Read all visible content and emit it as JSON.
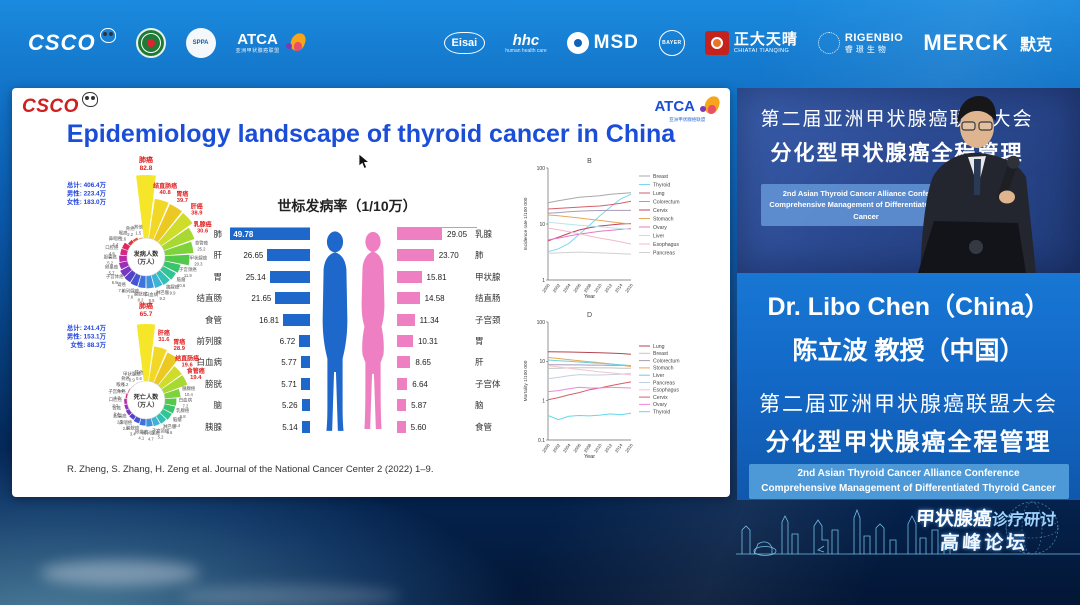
{
  "top_bar": {
    "left_logos": [
      {
        "id": "csco",
        "label": "CSCO"
      },
      {
        "id": "anti-cancer-assoc",
        "label": ""
      },
      {
        "id": "sppa",
        "label": "SPPA"
      },
      {
        "id": "atca",
        "label": "ATCA",
        "sub": "亚洲甲状腺癌联盟"
      }
    ],
    "right_logos": [
      {
        "id": "eisai",
        "label": "Eisai"
      },
      {
        "id": "hhc",
        "label": "hhc",
        "sub": "human health care"
      },
      {
        "id": "msd",
        "label": "MSD"
      },
      {
        "id": "bayer",
        "label": "BAYER"
      },
      {
        "id": "chiatai",
        "label": "正大天晴",
        "sub": "CHIATAI TIANQING"
      },
      {
        "id": "rigenbio",
        "label": "RIGENBIO",
        "sub": "睿璟生物"
      },
      {
        "id": "merck",
        "label": "MERCK",
        "sub": "默克"
      }
    ]
  },
  "slide": {
    "csco_logo": "CSCO",
    "atca_logo": "ATCA",
    "atca_sub": "亚洲甲状腺癌联盟",
    "title": "Epidemiology landscape of thyroid cancer in China",
    "citation": "R. Zheng, S. Zhang, H. Zeng et al. Journal of the National Cancer Center 2 (2022) 1–9."
  },
  "chart_data": [
    {
      "id": "incidence_rose",
      "type": "pie",
      "style": "nightingale-rose",
      "center_line1": "发病人数",
      "center_line2": "（万人）",
      "totals": [
        "总计: 406.4万",
        "男性: 223.4万",
        "女性: 183.0万"
      ],
      "colors": [
        "#f6e62a",
        "#f2d826",
        "#ecc822",
        "#cfdc2c",
        "#a8d832",
        "#7ed23a",
        "#54c84b",
        "#3ac46e",
        "#32c493",
        "#33bfb5",
        "#3fb3d6",
        "#3f93dd",
        "#3f72dd",
        "#4355d2",
        "#5540c8",
        "#7a36c2",
        "#9c2fba",
        "#bc2ba6",
        "#d02a86",
        "#dd2a62",
        "#e23345",
        "#e9542e",
        "#f08224"
      ],
      "wedges": [
        {
          "label": "肺癌",
          "value": "82.8",
          "red": true
        },
        {
          "label": "结直肠癌",
          "value": "40.8",
          "red": true
        },
        {
          "label": "胃癌",
          "value": "39.7",
          "red": true
        },
        {
          "label": "肝癌",
          "value": "38.9",
          "red": true
        },
        {
          "label": "乳腺癌",
          "value": "30.6",
          "red": true
        },
        {
          "label": "食管癌",
          "value": "25.2"
        },
        {
          "label": "甲状腺癌",
          "value": "20.3"
        },
        {
          "label": "子宫颈癌",
          "value": "11.9"
        },
        {
          "label": "脑瘤",
          "value": "10.6"
        },
        {
          "label": "胰腺癌",
          "value": "9.9"
        },
        {
          "label": "淋巴瘤",
          "value": "9.2"
        },
        {
          "label": "白血病",
          "value": "8.5"
        },
        {
          "label": "膀胱癌",
          "value": "8.2"
        },
        {
          "label": "前列腺癌",
          "value": "7.8"
        },
        {
          "label": "肾癌",
          "value": "7.3"
        },
        {
          "label": "子宫体癌",
          "value": "6.9"
        },
        {
          "label": "卵巢癌",
          "value": "5.7"
        },
        {
          "label": "胆囊癌",
          "value": "5.2"
        },
        {
          "label": "口腔癌",
          "value": "4.6"
        },
        {
          "label": "鼻咽癌",
          "value": "4.4"
        },
        {
          "label": "喉癌",
          "value": "2.6"
        },
        {
          "label": "骨癌",
          "value": "2.2"
        },
        {
          "label": "其他",
          "value": "1.5"
        }
      ]
    },
    {
      "id": "mortality_rose",
      "type": "pie",
      "style": "nightingale-rose",
      "center_line1": "死亡人数",
      "center_line2": "（万人）",
      "totals": [
        "总计: 241.4万",
        "男性: 153.1万",
        "女性: 88.3万"
      ],
      "colors": [
        "#f6e62a",
        "#f2d826",
        "#ecc822",
        "#cfdc2c",
        "#a8d832",
        "#7ed23a",
        "#54c84b",
        "#3ac46e",
        "#32c493",
        "#33bfb5",
        "#3fb3d6",
        "#3f93dd",
        "#3f72dd",
        "#4355d2",
        "#5540c8",
        "#7a36c2",
        "#9c2fba",
        "#bc2ba6",
        "#d02a86",
        "#dd2a62",
        "#e23345",
        "#e9542e",
        "#f08224"
      ],
      "wedges": [
        {
          "label": "肺癌",
          "value": "65.7",
          "red": true
        },
        {
          "label": "肝癌",
          "value": "31.6",
          "red": true
        },
        {
          "label": "胃癌",
          "value": "28.9",
          "red": true
        },
        {
          "label": "结直肠癌",
          "value": "19.6",
          "red": true
        },
        {
          "label": "食管癌",
          "value": "19.4",
          "red": true
        },
        {
          "label": "胰腺癌",
          "value": "10.4"
        },
        {
          "label": "白血病",
          "value": "7.2"
        },
        {
          "label": "乳腺癌",
          "value": "6.8"
        },
        {
          "label": "脑瘤",
          "value": "6.4"
        },
        {
          "label": "淋巴瘤",
          "value": "5.6"
        },
        {
          "label": "子宫颈癌",
          "value": "5.2"
        },
        {
          "label": "前列腺癌",
          "value": "4.7"
        },
        {
          "label": "卵巢癌",
          "value": "4.1"
        },
        {
          "label": "膀胱癌",
          "value": "3.4"
        },
        {
          "label": "鼻咽癌",
          "value": "2.9"
        },
        {
          "label": "胆囊癌",
          "value": "2.7"
        },
        {
          "label": "肾癌",
          "value": "2.4"
        },
        {
          "label": "口腔癌",
          "value": "2.2"
        },
        {
          "label": "子宫体癌",
          "value": "1.7"
        },
        {
          "label": "喉癌",
          "value": "1.4"
        },
        {
          "label": "骨癌",
          "value": "1.2"
        },
        {
          "label": "甲状腺癌",
          "value": "0.9"
        },
        {
          "label": "其他",
          "value": "0.6"
        }
      ]
    },
    {
      "id": "asir_bars",
      "type": "bar",
      "title": "世标发病率（1/10万）",
      "male": {
        "color": "#1e68cc",
        "labels": [
          "肺",
          "肝",
          "胃",
          "结直肠",
          "食管",
          "前列腺",
          "白血病",
          "膀胱",
          "脑",
          "胰腺"
        ],
        "values": [
          "49.78",
          "26.65",
          "25.14",
          "21.65",
          "16.81",
          "6.72",
          "5.77",
          "5.71",
          "5.26",
          "5.14"
        ]
      },
      "female": {
        "color": "#ee7fc2",
        "labels": [
          "乳腺",
          "肺",
          "甲状腺",
          "结直肠",
          "子宫颈",
          "胃",
          "肝",
          "子宫体",
          "脑",
          "食管"
        ],
        "values": [
          "29.05",
          "23.70",
          "15.81",
          "14.58",
          "11.34",
          "10.31",
          "8.65",
          "6.64",
          "5.87",
          "5.60"
        ]
      }
    },
    {
      "id": "incidence_trend",
      "type": "line",
      "panel_label": "B",
      "ylabel": "Incidence rate 1/100 000",
      "xlabel": "Year",
      "yscale": "log",
      "ylim": [
        1,
        100
      ],
      "x": [
        "2000",
        "2002",
        "2004",
        "2006",
        "2008",
        "2010",
        "2012",
        "2014",
        "2016"
      ],
      "legend_position": "right",
      "series": [
        {
          "name": "Breast",
          "color": "#a8a8a8",
          "values": [
            24,
            26,
            28,
            30,
            31,
            32,
            34,
            35,
            36
          ]
        },
        {
          "name": "Thyroid",
          "color": "#7fd4f0",
          "values": [
            3.2,
            3.6,
            4.5,
            6.5,
            9.5,
            14,
            20,
            28,
            34
          ]
        },
        {
          "name": "Lung",
          "color": "#d65f6a",
          "values": [
            18.5,
            19,
            19.5,
            20,
            20.5,
            21,
            22,
            23.5,
            25.5
          ]
        },
        {
          "name": "Colorectum",
          "color": "#a89ab8",
          "values": [
            15.5,
            16,
            16.5,
            17,
            17.2,
            17.4,
            17.5,
            17.5,
            17.5
          ]
        },
        {
          "name": "Cervix",
          "color": "#c2415e",
          "values": [
            5,
            5.8,
            6.8,
            7.8,
            8.6,
            9.2,
            9.6,
            10,
            10.2
          ]
        },
        {
          "name": "Stomach",
          "color": "#e8a755",
          "values": [
            14.5,
            14,
            13.4,
            12.8,
            12.2,
            11.6,
            11,
            10.4,
            10
          ]
        },
        {
          "name": "Ovary",
          "color": "#e977c9",
          "values": [
            5.2,
            5.6,
            6.1,
            6.6,
            7,
            7.4,
            7.7,
            8,
            8.3
          ]
        },
        {
          "name": "Liver",
          "color": "#b8e4ee",
          "values": [
            10.8,
            10.3,
            9.9,
            9.5,
            9.2,
            8.9,
            8.6,
            8.3,
            8
          ]
        },
        {
          "name": "Esophagus",
          "color": "#f4b9c9",
          "values": [
            8.5,
            7.9,
            7.3,
            6.7,
            6.1,
            5.6,
            5.2,
            4.8,
            4.4
          ]
        },
        {
          "name": "Pancreas",
          "color": "#d0d0d0",
          "values": [
            3,
            3.05,
            3.1,
            3.15,
            3.1,
            3.05,
            3,
            2.95,
            2.9
          ]
        }
      ]
    },
    {
      "id": "mortality_trend",
      "type": "line",
      "panel_label": "D",
      "ylabel": "Mortality 1/100 000",
      "xlabel": "Year",
      "yscale": "log",
      "ylim": [
        0.1,
        100
      ],
      "x": [
        "2000",
        "2002",
        "2004",
        "2006",
        "2008",
        "2010",
        "2012",
        "2014",
        "2016"
      ],
      "legend_position": "right",
      "series": [
        {
          "name": "Lung",
          "color": "#b5454f",
          "values": [
            17.5,
            17.4,
            17.3,
            17.1,
            16.8,
            16.5,
            16.2,
            15.8,
            15.2
          ]
        },
        {
          "name": "Breast",
          "color": "#c4c4c4",
          "values": [
            6.6,
            6.7,
            6.8,
            6.9,
            6.9,
            6.8,
            6.8,
            6.7,
            6.7
          ]
        },
        {
          "name": "Colorectum",
          "color": "#a89ab8",
          "values": [
            8.2,
            8.2,
            8.1,
            8.1,
            8,
            8,
            7.9,
            7.9,
            7.8
          ]
        },
        {
          "name": "Stomach",
          "color": "#e8a755",
          "values": [
            12.5,
            11.8,
            11.1,
            10.4,
            9.8,
            9.2,
            8.6,
            8,
            7.4
          ]
        },
        {
          "name": "Liver",
          "color": "#6ccfdc",
          "values": [
            10.8,
            10.4,
            10,
            9.6,
            9.2,
            8.9,
            8.5,
            8.2,
            7.8
          ]
        },
        {
          "name": "Pancreas",
          "color": "#c3cfe0",
          "values": [
            3.6,
            3.9,
            4.3,
            4.6,
            4.5,
            4.5,
            4.6,
            4.7,
            4.9
          ]
        },
        {
          "name": "Esophagus",
          "color": "#f4c3cd",
          "values": [
            7.8,
            7.2,
            6.7,
            6.2,
            5.8,
            5.4,
            5.1,
            4.8,
            4.5
          ]
        },
        {
          "name": "Cervix",
          "color": "#d65f6a",
          "values": [
            1.05,
            1.2,
            1.4,
            1.6,
            1.9,
            2.1,
            2.4,
            2.7,
            3
          ]
        },
        {
          "name": "Ovary",
          "color": "#ef86dd",
          "values": [
            1.7,
            1.8,
            2,
            2.2,
            2.1,
            2.1,
            2.2,
            2.15,
            2.1
          ]
        },
        {
          "name": "Thyroid",
          "color": "#62d8ec",
          "values": [
            0.42,
            0.33,
            0.4,
            0.42,
            0.41,
            0.43,
            0.46,
            0.44,
            0.48
          ]
        }
      ]
    }
  ],
  "speaker": {
    "backdrop_line1": "第二届亚洲甲状腺癌联盟大会",
    "backdrop_line2": "分化型甲状腺癌全程管理",
    "backdrop_en_line1": "2nd Asian Thyroid Cancer Alliance Conference",
    "backdrop_en_line2": "Comprehensive Management of Differentiated Thyroid Cancer",
    "name_en": "Dr. Libo Chen（China）",
    "name_zh": "陈立波 教授（中国）"
  },
  "conference": {
    "zh1": "第二届亚洲甲状腺癌联盟大会",
    "zh2": "分化型甲状腺癌全程管理",
    "en1": "2nd Asian Thyroid Cancer Alliance Conference",
    "en2": "Comprehensive Management of  Differentiated Thyroid Cancer"
  },
  "footer": {
    "forum_zh_bold": "甲状腺癌",
    "forum_zh_light": "诊疗研讨",
    "forum_line2": "高峰论坛"
  }
}
